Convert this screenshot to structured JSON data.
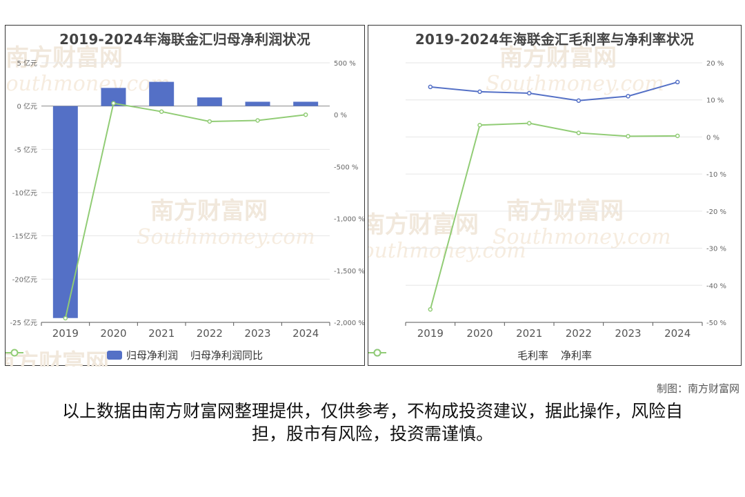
{
  "watermark": {
    "cn": "南方财富网",
    "en": "Southmoney.com"
  },
  "charts": {
    "left": {
      "title": "2019-2024年海联金汇归母净利润状况",
      "legend": [
        "归母净利润",
        "归母净利润同比"
      ]
    },
    "right": {
      "title": "2019-2024年海联金汇毛利率与净利率状况",
      "legend": [
        "毛利率",
        "净利率"
      ]
    }
  },
  "chart_data": [
    {
      "type": "bar",
      "title": "2019-2024年海联金汇归母净利润状况",
      "categories": [
        "2019",
        "2020",
        "2021",
        "2022",
        "2023",
        "2024"
      ],
      "series": [
        {
          "name": "归母净利润",
          "type": "bar",
          "axis": "left",
          "values": [
            -24.5,
            2.1,
            2.8,
            1.0,
            0.5,
            0.5
          ],
          "color": "#5470c6"
        },
        {
          "name": "归母净利润同比",
          "type": "line",
          "axis": "right",
          "values": [
            -1960,
            110,
            30,
            -65,
            -55,
            0
          ],
          "color": "#91cc75"
        }
      ],
      "y_left": {
        "min": -25,
        "max": 5,
        "ticks": [
          5,
          0,
          -5,
          -10,
          -15,
          -20,
          -25
        ],
        "tick_labels": [
          "5 亿元",
          "0 亿元",
          "-5 亿元",
          "-10亿元",
          "-15亿元",
          "-20亿元",
          "-25 亿元"
        ]
      },
      "y_right": {
        "min": -2000,
        "max": 500,
        "ticks": [
          500,
          0,
          -500,
          -1000,
          -1500,
          -2000
        ],
        "tick_labels": [
          "500 %",
          "0 %",
          "-500 %",
          "-1,000 %",
          "-1,500 %",
          "-2,000 %"
        ]
      },
      "legend_position": "bottom",
      "grid": true
    },
    {
      "type": "line",
      "title": "2019-2024年海联金汇毛利率与净利率状况",
      "categories": [
        "2019",
        "2020",
        "2021",
        "2022",
        "2023",
        "2024"
      ],
      "series": [
        {
          "name": "毛利率",
          "values": [
            13.5,
            12.2,
            11.8,
            9.8,
            11.0,
            14.8
          ],
          "color": "#5470c6"
        },
        {
          "name": "净利率",
          "values": [
            -46.5,
            3.2,
            3.7,
            1.1,
            0.2,
            0.3
          ],
          "color": "#91cc75"
        }
      ],
      "y_right": {
        "min": -50,
        "max": 20,
        "ticks": [
          20,
          10,
          0,
          -10,
          -20,
          -30,
          -40,
          -50
        ],
        "tick_labels": [
          "20 %",
          "10 %",
          "0 %",
          "-10 %",
          "-20 %",
          "-30 %",
          "-40 %",
          "-50 %"
        ]
      },
      "legend_position": "bottom",
      "grid": true
    }
  ],
  "footer": {
    "credit": "制图：南方财富网",
    "disclaimer": "以上数据由南方财富网整理提供，仅供参考，不构成投资建议，据此操作，风险自担，股市有风险，投资需谨慎。"
  }
}
